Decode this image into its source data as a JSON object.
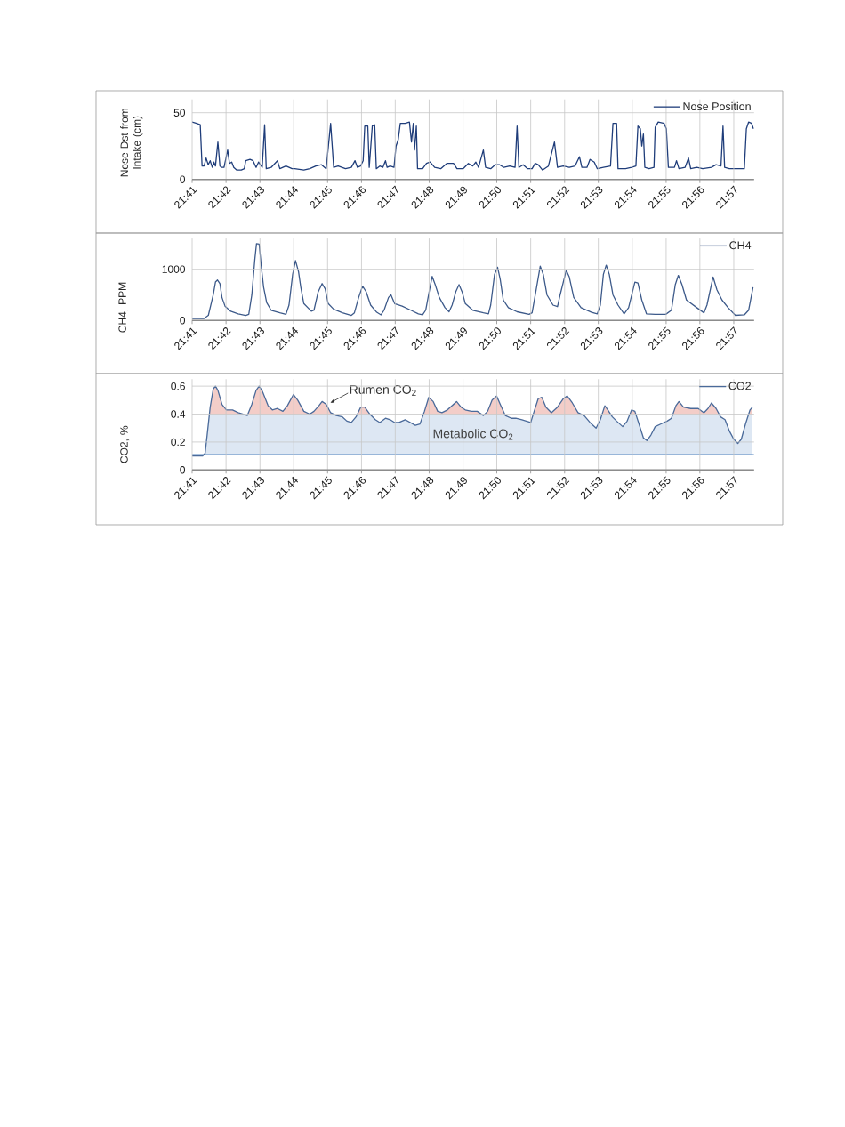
{
  "chart_data": [
    {
      "type": "line",
      "ylabel": "Nose Dst from Intake (cm)",
      "x": [
        21.6833,
        21.6855,
        21.6873,
        21.6882,
        21.6892,
        21.6902,
        21.6912,
        21.6922,
        21.6932,
        21.694,
        21.6948,
        21.696,
        21.697,
        21.698,
        21.699,
        21.7008,
        21.7017,
        21.7028,
        21.7038,
        21.7053,
        21.7075,
        21.709,
        21.7097,
        21.7118,
        21.7133,
        21.7148,
        21.716,
        21.7178,
        21.719,
        21.7198,
        21.7222,
        21.7253,
        21.7265,
        21.7295,
        21.7325,
        21.7338,
        21.7383,
        21.7412,
        21.7442,
        21.747,
        21.7493,
        21.7515,
        21.753,
        21.7552,
        21.7588,
        21.7617,
        21.7635,
        21.7647,
        21.7662,
        21.7675,
        21.7683,
        21.7698,
        21.7705,
        21.772,
        21.7732,
        21.774,
        21.7757,
        21.7772,
        21.7785,
        21.7793,
        21.7808,
        21.7827,
        21.7837,
        21.7848,
        21.7858,
        21.7882,
        21.7903,
        21.7913,
        21.7922,
        21.7928,
        21.7937,
        21.7943,
        21.7968,
        21.7987,
        21.8005,
        21.8027,
        21.8057,
        21.8087,
        21.812,
        21.8137,
        21.8167,
        21.8193,
        21.8215,
        21.823,
        21.8243,
        21.8267,
        21.8278,
        21.8303,
        21.8325,
        21.8347,
        21.8368,
        21.8397,
        21.8423,
        21.8433,
        21.8442,
        21.8463,
        21.8485,
        21.8507,
        21.8522,
        21.8537,
        21.8558,
        21.8587,
        21.8617,
        21.8632,
        21.866,
        21.869,
        21.8718,
        21.874,
        21.8752,
        21.8777,
        21.8792,
        21.8813,
        21.8828,
        21.8858,
        21.8893,
        21.8905,
        21.8923,
        21.893,
        21.8967,
        21.8997,
        21.9018,
        21.9028,
        21.904,
        21.9047,
        21.9055,
        21.9062,
        21.9083,
        21.9107,
        21.9113,
        21.9128,
        21.9157,
        21.9168,
        21.9178,
        21.9208,
        21.9218,
        21.923,
        21.926,
        21.9277,
        21.9288,
        21.9318,
        21.9347,
        21.939,
        21.9413,
        21.9437,
        21.9447,
        21.9455,
        21.9478,
        21.9508,
        21.953,
        21.9552,
        21.9562,
        21.9573,
        21.9588,
        21.9597
      ],
      "series": [
        {
          "name": "Nose Position",
          "color": "#1f3d7a",
          "values": [
            43,
            42,
            41,
            10,
            10,
            16,
            11,
            14,
            9,
            13,
            10,
            28,
            10,
            9,
            9,
            22,
            12,
            13,
            9,
            7,
            7,
            8,
            14,
            15,
            14,
            9,
            13,
            9,
            41,
            8,
            9,
            14,
            8,
            10,
            8,
            8,
            7,
            8,
            10,
            11,
            8,
            42,
            9,
            10,
            8,
            9,
            14,
            9,
            10,
            14,
            40,
            40,
            9,
            40,
            41,
            8,
            10,
            9,
            14,
            9,
            10,
            9,
            25,
            30,
            42,
            42,
            43,
            28,
            42,
            22,
            40,
            8,
            8,
            12,
            13,
            9,
            8,
            12,
            12,
            8,
            8,
            12,
            10,
            13,
            9,
            22,
            9,
            8,
            11,
            11,
            9,
            10,
            9,
            40,
            9,
            11,
            8,
            8,
            12,
            11,
            7,
            10,
            28,
            9,
            10,
            9,
            10,
            17,
            9,
            9,
            15,
            13,
            8,
            9,
            10,
            42,
            42,
            8,
            8,
            9,
            10,
            40,
            38,
            25,
            34,
            9,
            8,
            9,
            39,
            43,
            42,
            38,
            9,
            9,
            14,
            8,
            9,
            16,
            8,
            9,
            8,
            9,
            11,
            10,
            40,
            9,
            8,
            8,
            8,
            8,
            38,
            43,
            42,
            38
          ]
        }
      ],
      "xlim": [
        21.6833,
        21.96
      ],
      "ylim": [
        0,
        60
      ],
      "xticks": [
        {
          "value": 21.6833,
          "label": "21:41"
        },
        {
          "value": 21.7,
          "label": "21:42"
        },
        {
          "value": 21.7167,
          "label": "21:43"
        },
        {
          "value": 21.7333,
          "label": "21:44"
        },
        {
          "value": 21.75,
          "label": "21:45"
        },
        {
          "value": 21.7667,
          "label": "21:46"
        },
        {
          "value": 21.7833,
          "label": "21:47"
        },
        {
          "value": 21.8,
          "label": "21:48"
        },
        {
          "value": 21.8167,
          "label": "21:49"
        },
        {
          "value": 21.8333,
          "label": "21:50"
        },
        {
          "value": 21.85,
          "label": "21:51"
        },
        {
          "value": 21.8667,
          "label": "21:52"
        },
        {
          "value": 21.8833,
          "label": "21:53"
        },
        {
          "value": 21.9,
          "label": "21:54"
        },
        {
          "value": 21.9167,
          "label": "21:55"
        },
        {
          "value": 21.9333,
          "label": "21:56"
        },
        {
          "value": 21.95,
          "label": "21:57"
        }
      ],
      "yticks": [
        0,
        50
      ],
      "grid": true,
      "legend": "top right"
    },
    {
      "type": "line",
      "ylabel": "CH4, PPM",
      "x": [
        21.6833,
        21.6892,
        21.6913,
        21.6937,
        21.6948,
        21.6958,
        21.697,
        21.698,
        21.6995,
        21.7023,
        21.706,
        21.7097,
        21.7112,
        21.7127,
        21.7142,
        21.715,
        21.7163,
        21.7175,
        21.7185,
        21.72,
        21.7222,
        21.7265,
        21.7295,
        21.731,
        21.7328,
        21.7342,
        21.7357,
        21.7368,
        21.7383,
        21.742,
        21.7433,
        21.7453,
        21.7473,
        21.7488,
        21.7503,
        21.753,
        21.7573,
        21.7617,
        21.7632,
        21.7653,
        21.7672,
        21.769,
        21.7712,
        21.7742,
        21.7763,
        21.7778,
        21.78,
        21.7812,
        21.783,
        21.7867,
        21.791,
        21.7947,
        21.7968,
        21.7983,
        21.8002,
        21.8015,
        21.803,
        21.805,
        21.8078,
        21.8098,
        21.8113,
        21.8132,
        21.8147,
        21.8163,
        21.8178,
        21.8215,
        21.8267,
        21.8292,
        21.8303,
        21.8322,
        21.8337,
        21.835,
        21.8365,
        21.839,
        21.8433,
        21.8492,
        21.8507,
        21.8527,
        21.8547,
        21.8562,
        21.858,
        21.861,
        21.8632,
        21.8645,
        21.8675,
        21.869,
        21.8712,
        21.8748,
        21.88,
        21.8828,
        21.8843,
        21.8858,
        21.8872,
        21.8887,
        21.8905,
        21.893,
        21.896,
        21.8982,
        21.9013,
        21.9028,
        21.9047,
        21.907,
        21.9113,
        21.9165,
        21.9193,
        21.9212,
        21.9227,
        21.9245,
        21.9267,
        21.9318,
        21.9353,
        21.9368,
        21.9398,
        21.9417,
        21.9442,
        21.9472,
        21.9508,
        21.9552,
        21.9573,
        21.9595
      ],
      "series": [
        {
          "name": "CH4",
          "color": "#3d5a8a",
          "values": [
            40,
            40,
            100,
            500,
            750,
            790,
            720,
            450,
            280,
            180,
            130,
            100,
            120,
            500,
            1200,
            1500,
            1490,
            1000,
            650,
            350,
            200,
            150,
            120,
            300,
            900,
            1170,
            950,
            650,
            330,
            180,
            200,
            550,
            720,
            620,
            330,
            220,
            150,
            100,
            150,
            450,
            670,
            560,
            300,
            160,
            110,
            200,
            450,
            500,
            330,
            280,
            200,
            130,
            110,
            200,
            600,
            860,
            700,
            450,
            250,
            170,
            300,
            570,
            700,
            550,
            330,
            200,
            150,
            130,
            300,
            900,
            1040,
            800,
            400,
            250,
            170,
            120,
            150,
            600,
            1060,
            900,
            500,
            300,
            270,
            500,
            980,
            850,
            450,
            250,
            160,
            130,
            300,
            900,
            1080,
            900,
            500,
            300,
            130,
            250,
            750,
            730,
            400,
            130,
            120,
            120,
            200,
            700,
            880,
            700,
            400,
            250,
            150,
            300,
            850,
            600,
            400,
            250,
            100,
            110,
            200,
            650
          ]
        }
      ],
      "xlim": [
        21.6833,
        21.96
      ],
      "ylim": [
        0,
        1600
      ],
      "xticks": [
        {
          "value": 21.6833,
          "label": "21:41"
        },
        {
          "value": 21.7,
          "label": "21:42"
        },
        {
          "value": 21.7167,
          "label": "21:43"
        },
        {
          "value": 21.7333,
          "label": "21:44"
        },
        {
          "value": 21.75,
          "label": "21:45"
        },
        {
          "value": 21.7667,
          "label": "21:46"
        },
        {
          "value": 21.7833,
          "label": "21:47"
        },
        {
          "value": 21.8,
          "label": "21:48"
        },
        {
          "value": 21.8167,
          "label": "21:49"
        },
        {
          "value": 21.8333,
          "label": "21:50"
        },
        {
          "value": 21.85,
          "label": "21:51"
        },
        {
          "value": 21.8667,
          "label": "21:52"
        },
        {
          "value": 21.8833,
          "label": "21:53"
        },
        {
          "value": 21.9,
          "label": "21:54"
        },
        {
          "value": 21.9167,
          "label": "21:55"
        },
        {
          "value": 21.9333,
          "label": "21:56"
        },
        {
          "value": 21.95,
          "label": "21:57"
        }
      ],
      "yticks": [
        0,
        1000
      ],
      "grid": true,
      "legend": "top right"
    },
    {
      "type": "line",
      "ylabel": "CO2, %",
      "x": [
        21.6833,
        21.6885,
        21.6897,
        21.6907,
        21.6922,
        21.6937,
        21.6948,
        21.696,
        21.698,
        21.7002,
        21.7032,
        21.706,
        21.7105,
        21.7127,
        21.7148,
        21.7163,
        21.718,
        21.7207,
        21.7228,
        21.7253,
        21.728,
        21.7302,
        21.7332,
        21.7353,
        21.7383,
        21.7412,
        21.7433,
        21.7457,
        21.7473,
        21.7493,
        21.7515,
        21.7543,
        21.7573,
        21.7595,
        21.7617,
        21.764,
        21.7663,
        21.7683,
        21.7708,
        21.7735,
        21.7757,
        21.7785,
        21.7808,
        21.783,
        21.7852,
        21.7882,
        21.7907,
        21.7932,
        21.7955,
        21.7977,
        21.7998,
        21.802,
        21.8042,
        21.8063,
        21.809,
        21.8135,
        21.8157,
        21.8178,
        21.8208,
        21.8237,
        21.8267,
        21.8288,
        21.831,
        21.8332,
        21.835,
        21.8375,
        21.8405,
        21.8427,
        21.8457,
        21.8478,
        21.85,
        21.8517,
        21.8537,
        21.8555,
        21.8575,
        21.8602,
        21.8632,
        21.866,
        21.868,
        21.8705,
        21.8733,
        21.8763,
        21.8792,
        21.8822,
        21.8843,
        21.8865,
        21.888,
        21.8902,
        21.8923,
        21.8953,
        21.8975,
        21.8997,
        21.9013,
        21.9033,
        21.9055,
        21.9072,
        21.9092,
        21.9113,
        21.9142,
        21.9172,
        21.9193,
        21.9215,
        21.923,
        21.9252,
        21.9288,
        21.9325,
        21.9353,
        21.9373,
        21.939,
        21.9413,
        21.9435,
        21.9457,
        21.9478,
        21.95,
        21.952,
        21.9537,
        21.9558,
        21.958,
        21.9592
      ],
      "series": [
        {
          "name": "CO2",
          "color": "#4a6a9a",
          "values": [
            0.1,
            0.1,
            0.12,
            0.25,
            0.45,
            0.58,
            0.6,
            0.57,
            0.47,
            0.43,
            0.43,
            0.41,
            0.39,
            0.47,
            0.57,
            0.6,
            0.56,
            0.46,
            0.43,
            0.44,
            0.42,
            0.46,
            0.54,
            0.5,
            0.42,
            0.4,
            0.42,
            0.46,
            0.49,
            0.47,
            0.41,
            0.39,
            0.38,
            0.35,
            0.34,
            0.38,
            0.45,
            0.45,
            0.4,
            0.36,
            0.34,
            0.37,
            0.36,
            0.34,
            0.34,
            0.36,
            0.34,
            0.32,
            0.33,
            0.42,
            0.52,
            0.49,
            0.42,
            0.41,
            0.43,
            0.49,
            0.45,
            0.43,
            0.42,
            0.42,
            0.39,
            0.42,
            0.5,
            0.53,
            0.47,
            0.39,
            0.37,
            0.37,
            0.36,
            0.35,
            0.34,
            0.42,
            0.51,
            0.52,
            0.45,
            0.41,
            0.45,
            0.51,
            0.53,
            0.48,
            0.41,
            0.39,
            0.34,
            0.3,
            0.36,
            0.46,
            0.43,
            0.38,
            0.35,
            0.31,
            0.35,
            0.43,
            0.42,
            0.33,
            0.23,
            0.21,
            0.25,
            0.31,
            0.33,
            0.35,
            0.37,
            0.46,
            0.49,
            0.45,
            0.44,
            0.44,
            0.41,
            0.44,
            0.48,
            0.44,
            0.38,
            0.36,
            0.28,
            0.22,
            0.19,
            0.22,
            0.33,
            0.43,
            0.45
          ]
        }
      ],
      "xlim": [
        21.6833,
        21.96
      ],
      "ylim": [
        0,
        0.65
      ],
      "xticks": [
        {
          "value": 21.6833,
          "label": "21:41"
        },
        {
          "value": 21.7,
          "label": "21:42"
        },
        {
          "value": 21.7167,
          "label": "21:43"
        },
        {
          "value": 21.7333,
          "label": "21:44"
        },
        {
          "value": 21.75,
          "label": "21:45"
        },
        {
          "value": 21.7667,
          "label": "21:46"
        },
        {
          "value": 21.7833,
          "label": "21:47"
        },
        {
          "value": 21.8,
          "label": "21:48"
        },
        {
          "value": 21.8167,
          "label": "21:49"
        },
        {
          "value": 21.8333,
          "label": "21:50"
        },
        {
          "value": 21.85,
          "label": "21:51"
        },
        {
          "value": 21.8667,
          "label": "21:52"
        },
        {
          "value": 21.8833,
          "label": "21:53"
        },
        {
          "value": 21.9,
          "label": "21:54"
        },
        {
          "value": 21.9167,
          "label": "21:55"
        },
        {
          "value": 21.9333,
          "label": "21:56"
        },
        {
          "value": 21.95,
          "label": "21:57"
        }
      ],
      "yticks": [
        0,
        0.2,
        0.4,
        0.6
      ],
      "grid": true,
      "legend": "top right",
      "bands": [
        {
          "axis": "y",
          "from": 0.11,
          "to": 0.4,
          "label": "Metabolic CO$_{2}$",
          "color": "#dde7f3"
        },
        {
          "axis": "y",
          "from": 0.4,
          "to": 0.6,
          "color": "#f3cdc8"
        }
      ],
      "ref_lines": [
        {
          "axis": "y",
          "value": 0.11,
          "color": "#4f81bd"
        }
      ],
      "annotations": [
        {
          "text": "Rumen CO$_{2}$",
          "x": 21.7513,
          "y": 0.48
        }
      ]
    }
  ]
}
